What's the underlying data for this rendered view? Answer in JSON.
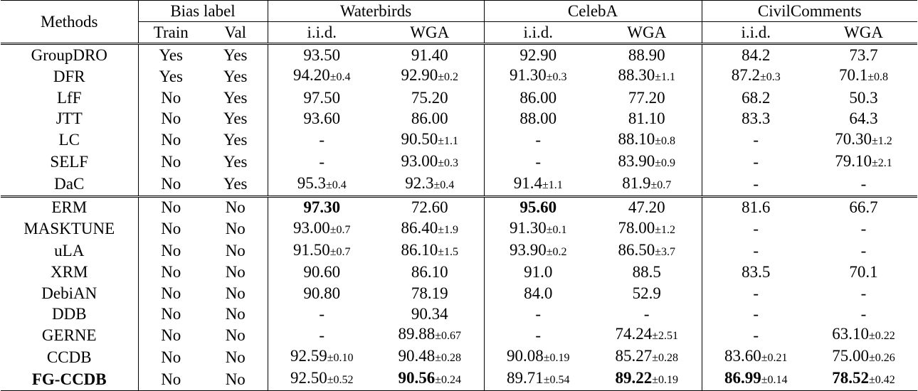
{
  "table": {
    "header": {
      "methods": "Methods",
      "bias_label": "Bias label",
      "train": "Train",
      "val": "Val",
      "datasets": [
        "Waterbirds",
        "CelebA",
        "CivilComments"
      ],
      "iid": "i.i.d.",
      "wga": "WGA"
    },
    "group1": [
      {
        "method": "GroupDRO",
        "train": "Yes",
        "val": "Yes",
        "wb_iid": {
          "v": "93.50",
          "s": ""
        },
        "wb_wga": {
          "v": "91.40",
          "s": ""
        },
        "ca_iid": {
          "v": "92.90",
          "s": ""
        },
        "ca_wga": {
          "v": "88.90",
          "s": ""
        },
        "cc_iid": {
          "v": "84.2",
          "s": ""
        },
        "cc_wga": {
          "v": "73.7",
          "s": ""
        }
      },
      {
        "method": "DFR",
        "train": "Yes",
        "val": "Yes",
        "wb_iid": {
          "v": "94.20",
          "s": "±0.4"
        },
        "wb_wga": {
          "v": "92.90",
          "s": "±0.2"
        },
        "ca_iid": {
          "v": "91.30",
          "s": "±0.3"
        },
        "ca_wga": {
          "v": "88.30",
          "s": "±1.1"
        },
        "cc_iid": {
          "v": "87.2",
          "s": "±0.3"
        },
        "cc_wga": {
          "v": "70.1",
          "s": "±0.8"
        }
      },
      {
        "method": "LfF",
        "train": "No",
        "val": "Yes",
        "wb_iid": {
          "v": "97.50",
          "s": ""
        },
        "wb_wga": {
          "v": "75.20",
          "s": ""
        },
        "ca_iid": {
          "v": "86.00",
          "s": ""
        },
        "ca_wga": {
          "v": "77.20",
          "s": ""
        },
        "cc_iid": {
          "v": "68.2",
          "s": ""
        },
        "cc_wga": {
          "v": "50.3",
          "s": ""
        }
      },
      {
        "method": "JTT",
        "train": "No",
        "val": "Yes",
        "wb_iid": {
          "v": "93.60",
          "s": ""
        },
        "wb_wga": {
          "v": "86.00",
          "s": ""
        },
        "ca_iid": {
          "v": "88.00",
          "s": ""
        },
        "ca_wga": {
          "v": "81.10",
          "s": ""
        },
        "cc_iid": {
          "v": "83.3",
          "s": ""
        },
        "cc_wga": {
          "v": "64.3",
          "s": ""
        }
      },
      {
        "method": "LC",
        "train": "No",
        "val": "Yes",
        "wb_iid": {
          "v": "-",
          "s": ""
        },
        "wb_wga": {
          "v": "90.50",
          "s": "±1.1"
        },
        "ca_iid": {
          "v": "-",
          "s": ""
        },
        "ca_wga": {
          "v": "88.10",
          "s": "±0.8"
        },
        "cc_iid": {
          "v": "-",
          "s": ""
        },
        "cc_wga": {
          "v": "70.30",
          "s": "±1.2"
        }
      },
      {
        "method": "SELF",
        "train": "No",
        "val": "Yes",
        "wb_iid": {
          "v": "-",
          "s": ""
        },
        "wb_wga": {
          "v": "93.00",
          "s": "±0.3"
        },
        "ca_iid": {
          "v": "-",
          "s": ""
        },
        "ca_wga": {
          "v": "83.90",
          "s": "±0.9"
        },
        "cc_iid": {
          "v": "-",
          "s": ""
        },
        "cc_wga": {
          "v": "79.10",
          "s": "±2.1"
        }
      },
      {
        "method": "DaC",
        "train": "No",
        "val": "Yes",
        "wb_iid": {
          "v": "95.3",
          "s": "±0.4"
        },
        "wb_wga": {
          "v": "92.3",
          "s": "±0.4"
        },
        "ca_iid": {
          "v": "91.4",
          "s": "±1.1"
        },
        "ca_wga": {
          "v": "81.9",
          "s": "±0.7"
        },
        "cc_iid": {
          "v": "-",
          "s": ""
        },
        "cc_wga": {
          "v": "-",
          "s": ""
        }
      }
    ],
    "group2": [
      {
        "method": "ERM",
        "train": "No",
        "val": "No",
        "wb_iid": {
          "v": "97.30",
          "s": "",
          "b": true
        },
        "wb_wga": {
          "v": "72.60",
          "s": ""
        },
        "ca_iid": {
          "v": "95.60",
          "s": "",
          "b": true
        },
        "ca_wga": {
          "v": "47.20",
          "s": ""
        },
        "cc_iid": {
          "v": "81.6",
          "s": ""
        },
        "cc_wga": {
          "v": "66.7",
          "s": ""
        }
      },
      {
        "method": "MASKTUNE",
        "train": "No",
        "val": "No",
        "wb_iid": {
          "v": "93.00",
          "s": "±0.7"
        },
        "wb_wga": {
          "v": "86.40",
          "s": "±1.9"
        },
        "ca_iid": {
          "v": "91.30",
          "s": "±0.1"
        },
        "ca_wga": {
          "v": "78.00",
          "s": "±1.2"
        },
        "cc_iid": {
          "v": "-",
          "s": ""
        },
        "cc_wga": {
          "v": "-",
          "s": ""
        }
      },
      {
        "method": "uLA",
        "train": "No",
        "val": "No",
        "wb_iid": {
          "v": "91.50",
          "s": "±0.7"
        },
        "wb_wga": {
          "v": "86.10",
          "s": "±1.5"
        },
        "ca_iid": {
          "v": "93.90",
          "s": "±0.2"
        },
        "ca_wga": {
          "v": "86.50",
          "s": "±3.7"
        },
        "cc_iid": {
          "v": "-",
          "s": ""
        },
        "cc_wga": {
          "v": "-",
          "s": ""
        }
      },
      {
        "method": "XRM",
        "train": "No",
        "val": "No",
        "wb_iid": {
          "v": "90.60",
          "s": ""
        },
        "wb_wga": {
          "v": "86.10",
          "s": ""
        },
        "ca_iid": {
          "v": "91.0",
          "s": ""
        },
        "ca_wga": {
          "v": "88.5",
          "s": ""
        },
        "cc_iid": {
          "v": "83.5",
          "s": ""
        },
        "cc_wga": {
          "v": "70.1",
          "s": ""
        }
      },
      {
        "method": "DebiAN",
        "train": "No",
        "val": "No",
        "wb_iid": {
          "v": "90.80",
          "s": ""
        },
        "wb_wga": {
          "v": "78.19",
          "s": ""
        },
        "ca_iid": {
          "v": "84.0",
          "s": ""
        },
        "ca_wga": {
          "v": "52.9",
          "s": ""
        },
        "cc_iid": {
          "v": "-",
          "s": ""
        },
        "cc_wga": {
          "v": "-",
          "s": ""
        }
      },
      {
        "method": "DDB",
        "train": "No",
        "val": "No",
        "wb_iid": {
          "v": "-",
          "s": ""
        },
        "wb_wga": {
          "v": "90.34",
          "s": ""
        },
        "ca_iid": {
          "v": "-",
          "s": ""
        },
        "ca_wga": {
          "v": "-",
          "s": ""
        },
        "cc_iid": {
          "v": "-",
          "s": ""
        },
        "cc_wga": {
          "v": "-",
          "s": ""
        }
      },
      {
        "method": "GERNE",
        "train": "No",
        "val": "No",
        "wb_iid": {
          "v": "-",
          "s": ""
        },
        "wb_wga": {
          "v": "89.88",
          "s": "±0.67"
        },
        "ca_iid": {
          "v": "-",
          "s": ""
        },
        "ca_wga": {
          "v": "74.24",
          "s": "±2.51"
        },
        "cc_iid": {
          "v": "-",
          "s": ""
        },
        "cc_wga": {
          "v": "63.10",
          "s": "±0.22"
        }
      },
      {
        "method": "CCDB",
        "train": "No",
        "val": "No",
        "wb_iid": {
          "v": "92.59",
          "s": "±0.10"
        },
        "wb_wga": {
          "v": "90.48",
          "s": "±0.28"
        },
        "ca_iid": {
          "v": "90.08",
          "s": "±0.19"
        },
        "ca_wga": {
          "v": "85.27",
          "s": "±0.28"
        },
        "cc_iid": {
          "v": "83.60",
          "s": "±0.21"
        },
        "cc_wga": {
          "v": "75.00",
          "s": "±0.26"
        }
      },
      {
        "method": "FG-CCDB",
        "method_bold": true,
        "train": "No",
        "val": "No",
        "wb_iid": {
          "v": "92.50",
          "s": "±0.52"
        },
        "wb_wga": {
          "v": "90.56",
          "s": "±0.24",
          "b": true
        },
        "ca_iid": {
          "v": "89.71",
          "s": "±0.54"
        },
        "ca_wga": {
          "v": "89.22",
          "s": "±0.19",
          "b": true
        },
        "cc_iid": {
          "v": "86.99",
          "s": "±0.14",
          "b": true
        },
        "cc_wga": {
          "v": "78.52",
          "s": "±0.42",
          "b": true
        }
      }
    ]
  }
}
